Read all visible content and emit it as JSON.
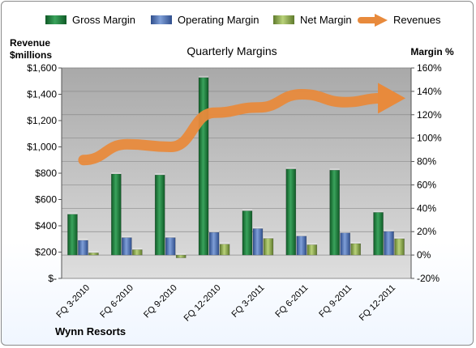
{
  "chart_data": {
    "type": "bar+line",
    "title": "Quarterly Margins",
    "left_axis_label": [
      "Revenue",
      "$millions"
    ],
    "right_axis_label": "Margin %",
    "footer": "Wynn Resorts",
    "categories": [
      "FQ 3-2010",
      "FQ 6-2010",
      "FQ 9-2010",
      "FQ 12-2010",
      "FQ 3-2011",
      "FQ 6-2011",
      "FQ 9-2011",
      "FQ 12-2011"
    ],
    "left_ticks": [
      "$-",
      "$200",
      "$400",
      "$600",
      "$800",
      "$1,000",
      "$1,200",
      "$1,400",
      "$1,600"
    ],
    "left_range": [
      0,
      1600
    ],
    "right_ticks": [
      "-20%",
      "0%",
      "20%",
      "40%",
      "60%",
      "80%",
      "100%",
      "120%",
      "140%",
      "160%"
    ],
    "right_range": [
      -20,
      160
    ],
    "series": [
      {
        "name": "Gross Margin",
        "axis": "right",
        "kind": "bar",
        "color": "#1e7a3c",
        "values": [
          34.9,
          69.3,
          68.5,
          151.8,
          37.8,
          73.6,
          72.6,
          36.5
        ]
      },
      {
        "name": "Operating Margin",
        "axis": "right",
        "kind": "bar",
        "color": "#4a6fb5",
        "values": [
          12.6,
          14.9,
          14.9,
          19.4,
          22.6,
          16.2,
          19.0,
          20.2
        ]
      },
      {
        "name": "Net Margin",
        "axis": "right",
        "kind": "bar",
        "color": "#8aa64a",
        "values": [
          1.9,
          4.6,
          -2.4,
          9.3,
          14.2,
          8.8,
          9.8,
          14.0
        ]
      },
      {
        "name": "Revenues",
        "axis": "left",
        "kind": "line",
        "color": "#e88a3c",
        "values": [
          900,
          1020,
          1000,
          1260,
          1300,
          1400,
          1340,
          1370
        ]
      }
    ],
    "legend_placement": "top",
    "grid": true
  },
  "colors": {
    "plot_bg": "#bfbfbf",
    "grid": "#8c8c8c"
  }
}
